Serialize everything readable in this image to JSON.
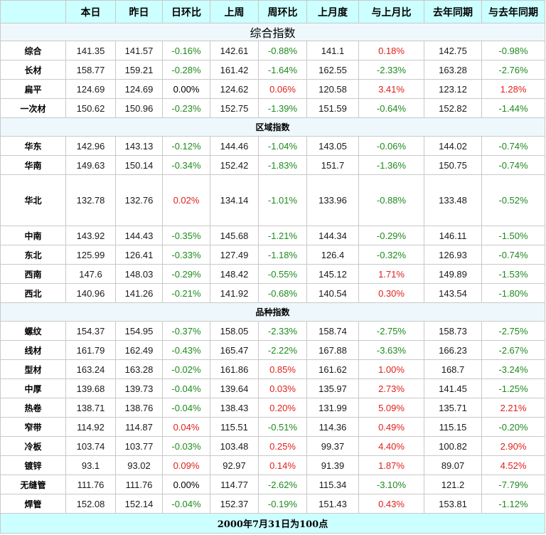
{
  "header": {
    "columns": [
      "",
      "本日",
      "昨日",
      "日环比",
      "上周",
      "周环比",
      "上月度",
      "与上月比",
      "去年同期",
      "与去年同期"
    ]
  },
  "sections": [
    {
      "title": "综合指数",
      "rows": [
        {
          "label": "综合",
          "values": [
            "141.35",
            "141.57",
            "-0.16%",
            "142.61",
            "-0.88%",
            "141.1",
            "0.18%",
            "142.75",
            "-0.98%"
          ]
        },
        {
          "label": "长材",
          "values": [
            "158.77",
            "159.21",
            "-0.28%",
            "161.42",
            "-1.64%",
            "162.55",
            "-2.33%",
            "163.28",
            "-2.76%"
          ]
        },
        {
          "label": "扁平",
          "values": [
            "124.69",
            "124.69",
            "0.00%",
            "124.62",
            "0.06%",
            "120.58",
            "3.41%",
            "123.12",
            "1.28%"
          ]
        },
        {
          "label": "一次材",
          "values": [
            "150.62",
            "150.96",
            "-0.23%",
            "152.75",
            "-1.39%",
            "151.59",
            "-0.64%",
            "152.82",
            "-1.44%"
          ]
        }
      ]
    },
    {
      "title": "区域指数",
      "rows": [
        {
          "label": "华东",
          "values": [
            "142.96",
            "143.13",
            "-0.12%",
            "144.46",
            "-1.04%",
            "143.05",
            "-0.06%",
            "144.02",
            "-0.74%"
          ]
        },
        {
          "label": "华南",
          "values": [
            "149.63",
            "150.14",
            "-0.34%",
            "152.42",
            "-1.83%",
            "151.7",
            "-1.36%",
            "150.75",
            "-0.74%"
          ]
        },
        {
          "label": "华北",
          "values": [
            "132.78",
            "132.76",
            "0.02%",
            "134.14",
            "-1.01%",
            "133.96",
            "-0.88%",
            "133.48",
            "-0.52%"
          ]
        },
        {
          "label": "中南",
          "values": [
            "143.92",
            "144.43",
            "-0.35%",
            "145.68",
            "-1.21%",
            "144.34",
            "-0.29%",
            "146.11",
            "-1.50%"
          ]
        },
        {
          "label": "东北",
          "values": [
            "125.99",
            "126.41",
            "-0.33%",
            "127.49",
            "-1.18%",
            "126.4",
            "-0.32%",
            "126.93",
            "-0.74%"
          ]
        },
        {
          "label": "西南",
          "values": [
            "147.6",
            "148.03",
            "-0.29%",
            "148.42",
            "-0.55%",
            "145.12",
            "1.71%",
            "149.89",
            "-1.53%"
          ]
        },
        {
          "label": "西北",
          "values": [
            "140.96",
            "141.26",
            "-0.21%",
            "141.92",
            "-0.68%",
            "140.54",
            "0.30%",
            "143.54",
            "-1.80%"
          ]
        }
      ]
    },
    {
      "title": "品种指数",
      "rows": [
        {
          "label": "螺纹",
          "values": [
            "154.37",
            "154.95",
            "-0.37%",
            "158.05",
            "-2.33%",
            "158.74",
            "-2.75%",
            "158.73",
            "-2.75%"
          ]
        },
        {
          "label": "线材",
          "values": [
            "161.79",
            "162.49",
            "-0.43%",
            "165.47",
            "-2.22%",
            "167.88",
            "-3.63%",
            "166.23",
            "-2.67%"
          ]
        },
        {
          "label": "型材",
          "values": [
            "163.24",
            "163.28",
            "-0.02%",
            "161.86",
            "0.85%",
            "161.62",
            "1.00%",
            "168.7",
            "-3.24%"
          ]
        },
        {
          "label": "中厚",
          "values": [
            "139.68",
            "139.73",
            "-0.04%",
            "139.64",
            "0.03%",
            "135.97",
            "2.73%",
            "141.45",
            "-1.25%"
          ]
        },
        {
          "label": "热卷",
          "values": [
            "138.71",
            "138.76",
            "-0.04%",
            "138.43",
            "0.20%",
            "131.99",
            "5.09%",
            "135.71",
            "2.21%"
          ]
        },
        {
          "label": "窄带",
          "values": [
            "114.92",
            "114.87",
            "0.04%",
            "115.51",
            "-0.51%",
            "114.36",
            "0.49%",
            "115.15",
            "-0.20%"
          ]
        },
        {
          "label": "冷板",
          "values": [
            "103.74",
            "103.77",
            "-0.03%",
            "103.48",
            "0.25%",
            "99.37",
            "4.40%",
            "100.82",
            "2.90%"
          ]
        },
        {
          "label": "镀锌",
          "values": [
            "93.1",
            "93.02",
            "0.09%",
            "92.97",
            "0.14%",
            "91.39",
            "1.87%",
            "89.07",
            "4.52%"
          ]
        },
        {
          "label": "无缝管",
          "values": [
            "111.76",
            "111.76",
            "0.00%",
            "114.77",
            "-2.62%",
            "115.34",
            "-3.10%",
            "121.2",
            "-7.79%"
          ]
        },
        {
          "label": "焊管",
          "values": [
            "152.08",
            "152.14",
            "-0.04%",
            "152.37",
            "-0.19%",
            "151.43",
            "0.43%",
            "153.81",
            "-1.12%"
          ]
        }
      ]
    }
  ],
  "footer": "2000年7月31日为100点",
  "colors": {
    "header_bg": "#ccffff",
    "section_bg": "#eef8fc",
    "positive": "#e0201c",
    "negative": "#1e8a1e",
    "border": "#c9c9c9"
  }
}
